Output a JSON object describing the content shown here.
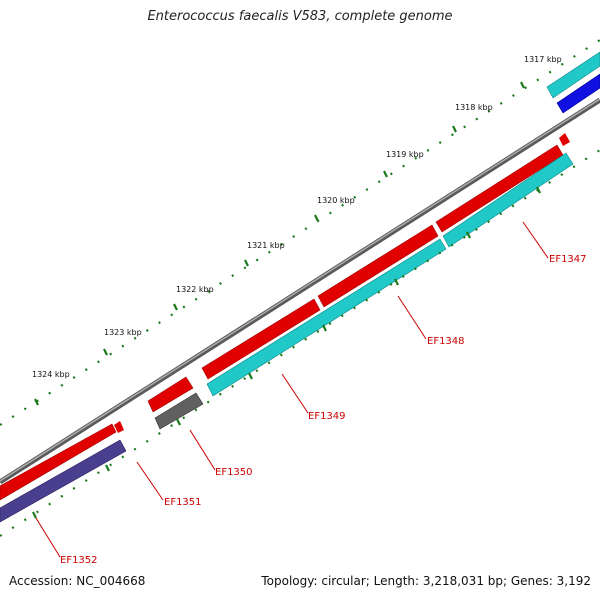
{
  "title": "Enterococcus faecalis V583, complete genome",
  "footer": {
    "accession": "Accession: NC_004668",
    "summary": "Topology: circular; Length: 3,218,031 bp; Genes: 3,192"
  },
  "colors": {
    "backbone": "#8a8a8a",
    "forward_gene": "#e00000",
    "reverse_cyan": "#20c8c8",
    "reverse_dark": "#4a3f8f",
    "reverse_blue": "#1010e0",
    "gray_gene": "#606060",
    "ticks": "#1a7a1a",
    "label": "#cc0000"
  },
  "scale_labels": [
    "1317 kbp",
    "1318 kbp",
    "1319 kbp",
    "1320 kbp",
    "1321 kbp",
    "1322 kbp",
    "1323 kbp",
    "1324 kbp"
  ],
  "genes": [
    {
      "id": "EF1347",
      "label": "EF1347"
    },
    {
      "id": "EF1348",
      "label": "EF1348"
    },
    {
      "id": "EF1349",
      "label": "EF1349"
    },
    {
      "id": "EF1350",
      "label": "EF1350"
    },
    {
      "id": "EF1351",
      "label": "EF1351"
    },
    {
      "id": "EF1352",
      "label": "EF1352"
    }
  ]
}
